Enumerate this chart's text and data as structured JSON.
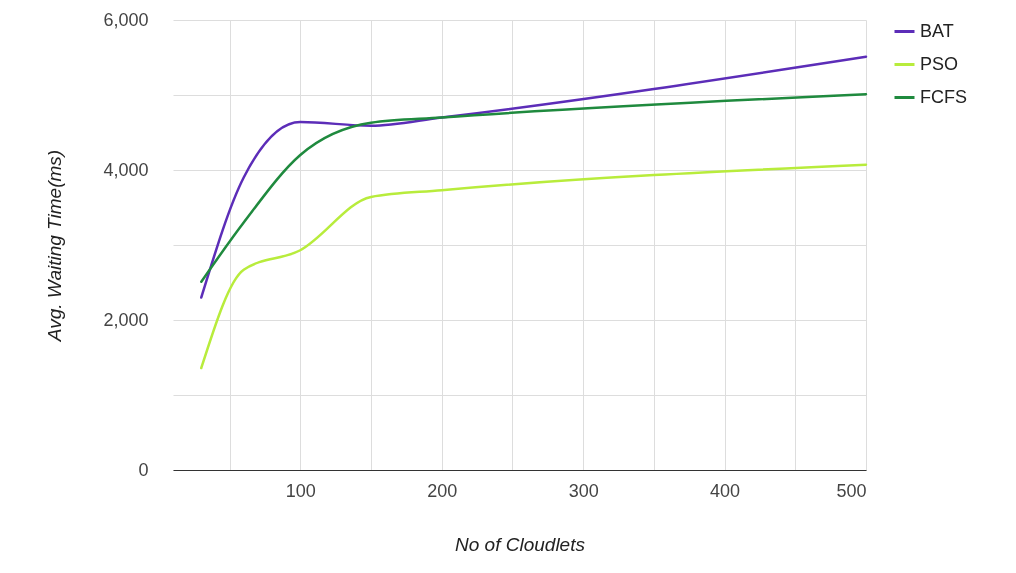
{
  "chart_data": {
    "type": "line",
    "xlabel": "No of Cloudlets",
    "ylabel": "Avg. Waiting Time(ms)",
    "x": [
      30,
      60,
      100,
      150,
      200,
      500
    ],
    "series": [
      {
        "name": "BAT",
        "color": "#5c2db8",
        "values": [
          2300,
          3900,
          4640,
          4590,
          4700,
          5510
        ]
      },
      {
        "name": "PSO",
        "color": "#b8ec3c",
        "values": [
          1360,
          2670,
          2930,
          3640,
          3730,
          4070
        ]
      },
      {
        "name": "FCFS",
        "color": "#1f8a3e",
        "values": [
          2510,
          3300,
          4200,
          4630,
          4700,
          5010
        ]
      }
    ],
    "xlim": [
      10,
      500
    ],
    "ylim": [
      0,
      6000
    ],
    "xticks": [
      {
        "value": 50,
        "label": null
      },
      100,
      {
        "value": 150,
        "label": null
      },
      200,
      {
        "value": 250,
        "label": null
      },
      300,
      {
        "value": 350,
        "label": null
      },
      400,
      {
        "value": 450,
        "label": null
      },
      500
    ],
    "yticks": [
      {
        "value": 0,
        "label": "0"
      },
      {
        "value": 1000,
        "label": null
      },
      {
        "value": 2000,
        "label": "2,000"
      },
      {
        "value": 3000,
        "label": null
      },
      {
        "value": 4000,
        "label": "4,000"
      },
      {
        "value": 5000,
        "label": null
      },
      {
        "value": 6000,
        "label": "6,000"
      }
    ],
    "grid": true,
    "legend": "right",
    "marker": "none",
    "line_style": "solid"
  }
}
